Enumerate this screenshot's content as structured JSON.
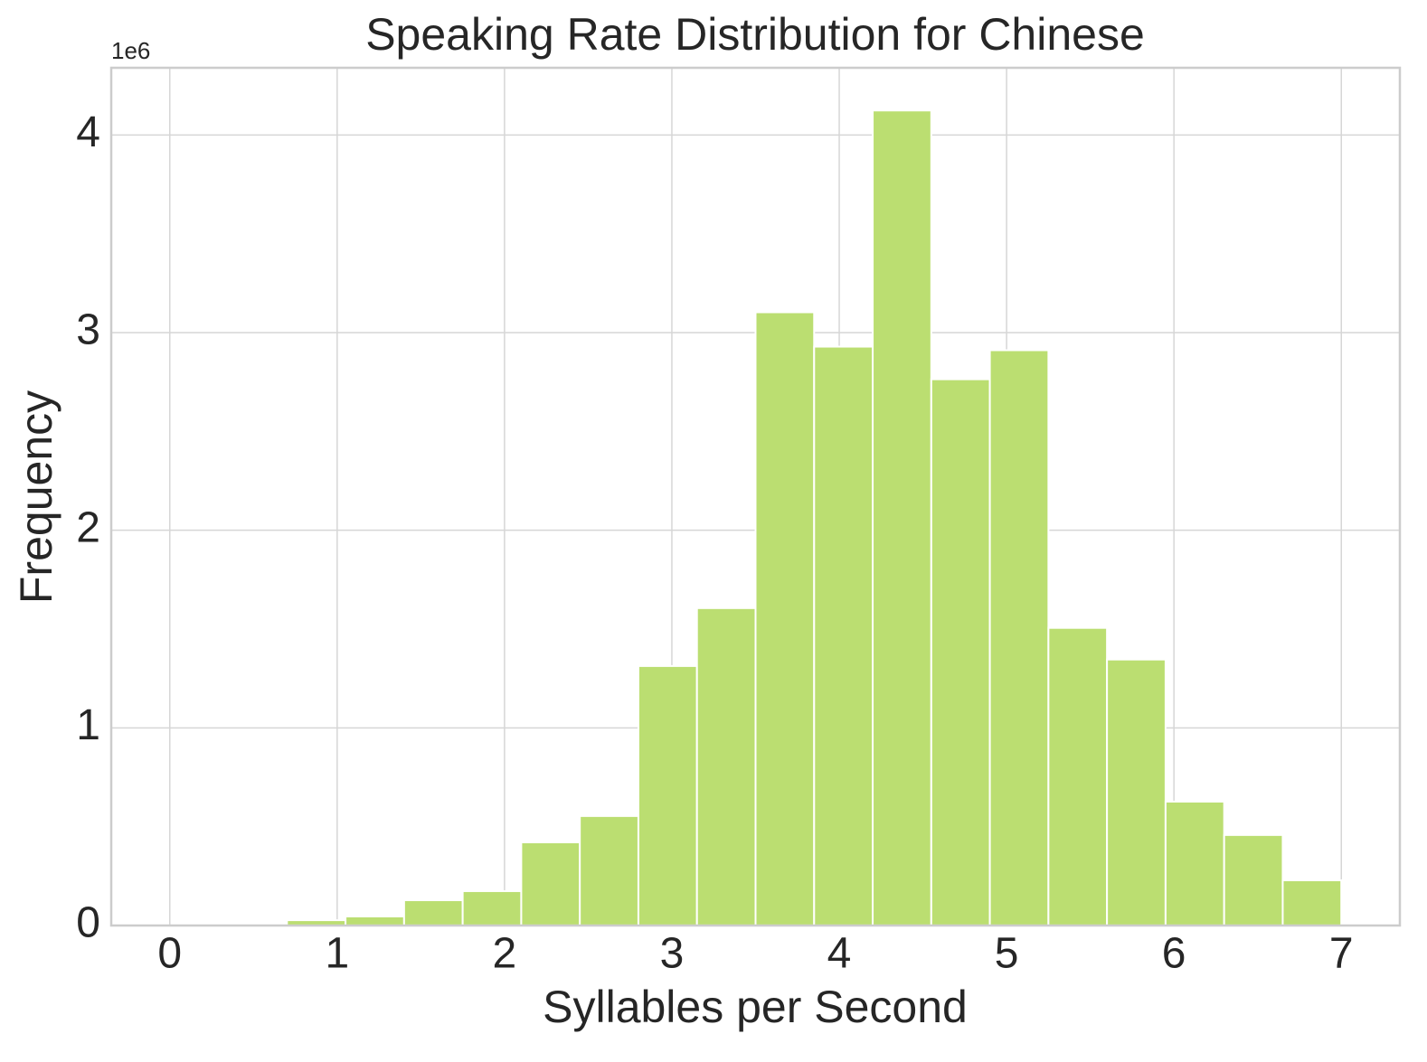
{
  "chart_data": {
    "type": "histogram",
    "title": "Speaking Rate Distribution for Chinese",
    "x_label": "Syllables per Second",
    "y_label": "Frequency",
    "y_offset_label": "1e6",
    "bins": [
      0,
      0.35,
      0.7,
      1.05,
      1.4,
      1.75,
      2.1,
      2.45,
      2.8,
      3.15,
      3.5,
      3.85,
      4.2,
      4.55,
      4.9,
      5.25,
      5.6,
      5.95,
      6.3,
      6.65,
      7.0
    ],
    "values": [
      0,
      0,
      27000,
      46000,
      128000,
      174000,
      421000,
      554000,
      1313000,
      1606000,
      3103000,
      2929000,
      4124000,
      2764000,
      2911000,
      1506000,
      1346000,
      627000,
      458000,
      229000
    ],
    "color": "#bbde71",
    "xlim": [
      -0.35,
      7.35
    ],
    "xticks": [
      0,
      1,
      2,
      3,
      4,
      5,
      6,
      7
    ],
    "ylim": [
      0,
      4340000
    ],
    "yticks": [
      {
        "value": 0,
        "label": "0"
      },
      {
        "value": 1000000,
        "label": "1"
      },
      {
        "value": 2000000,
        "label": "2"
      },
      {
        "value": 3000000,
        "label": "3"
      },
      {
        "value": 4000000,
        "label": "4"
      }
    ],
    "grid": true
  }
}
